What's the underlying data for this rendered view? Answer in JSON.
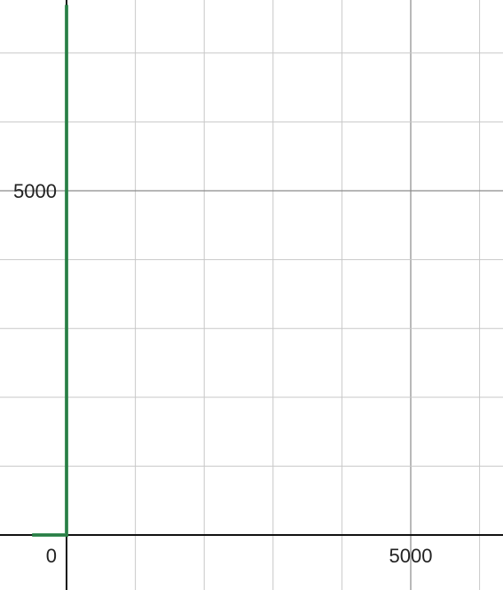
{
  "chart_data": {
    "type": "line",
    "title": "",
    "xlabel": "",
    "ylabel": "",
    "xlim": [
      -500,
      6600
    ],
    "ylim": [
      -400,
      7700
    ],
    "grid": true,
    "grid_minor_step": 1000,
    "grid_major_step": 5000,
    "tick_labels": {
      "origin": "0",
      "x": [
        {
          "value": 5000,
          "label": "5000"
        }
      ],
      "y": [
        {
          "value": 5000,
          "label": "5000"
        }
      ]
    },
    "series": [
      {
        "color": "#2d8a4c",
        "x": [
          -500,
          0,
          0
        ],
        "y": [
          0,
          0,
          7700
        ]
      }
    ]
  },
  "colors": {
    "axis": "#111111",
    "grid_minor": "#c8c8c8",
    "grid_major": "#8a8a8a",
    "series": "#2d8a4c"
  }
}
